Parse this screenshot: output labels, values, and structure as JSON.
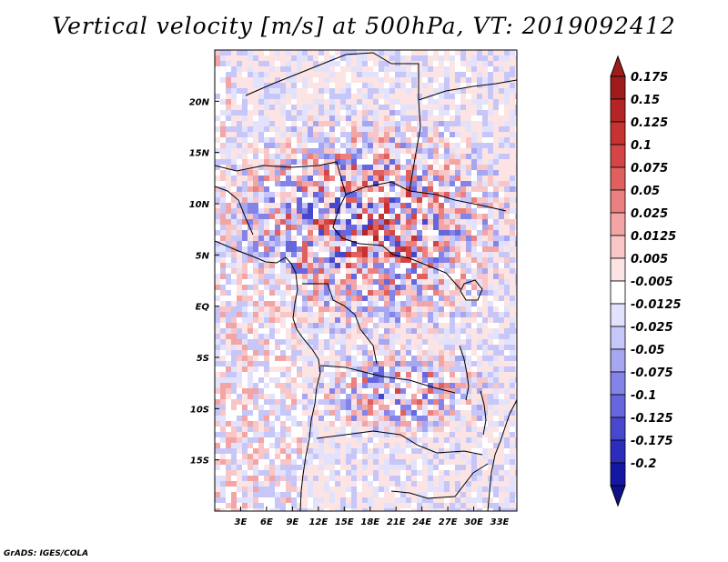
{
  "title": "Vertical velocity [m/s] at 500hPa, VT: 2019092412",
  "credit": "GrADS: IGES/COLA",
  "map": {
    "lon_range": [
      0,
      35
    ],
    "lat_range": [
      -20,
      25
    ],
    "lat_ticks": [
      {
        "value": 20,
        "label": "20N"
      },
      {
        "value": 15,
        "label": "15N"
      },
      {
        "value": 10,
        "label": "10N"
      },
      {
        "value": 5,
        "label": "5N"
      },
      {
        "value": 0,
        "label": "EQ"
      },
      {
        "value": -5,
        "label": "5S"
      },
      {
        "value": -10,
        "label": "10S"
      },
      {
        "value": -15,
        "label": "15S"
      }
    ],
    "lon_ticks": [
      {
        "value": 3,
        "label": "3E"
      },
      {
        "value": 6,
        "label": "6E"
      },
      {
        "value": 9,
        "label": "9E"
      },
      {
        "value": 12,
        "label": "12E"
      },
      {
        "value": 15,
        "label": "15E"
      },
      {
        "value": 18,
        "label": "18E"
      },
      {
        "value": 21,
        "label": "21E"
      },
      {
        "value": 24,
        "label": "24E"
      },
      {
        "value": 27,
        "label": "27E"
      },
      {
        "value": 30,
        "label": "30E"
      },
      {
        "value": 33,
        "label": "33E"
      }
    ]
  },
  "colorbar": {
    "levels": [
      {
        "label": "0.175",
        "color": "#a01c1c"
      },
      {
        "label": "0.15",
        "color": "#b52525"
      },
      {
        "label": "0.125",
        "color": "#c73232"
      },
      {
        "label": "0.1",
        "color": "#d64545"
      },
      {
        "label": "0.075",
        "color": "#e06060"
      },
      {
        "label": "0.05",
        "color": "#ea8080"
      },
      {
        "label": "0.025",
        "color": "#f3a4a4"
      },
      {
        "label": "0.0125",
        "color": "#f8c6c6"
      },
      {
        "label": "0.005",
        "color": "#fce4e4"
      },
      {
        "label": "-0.005",
        "color": "#ffffff"
      },
      {
        "label": "-0.0125",
        "color": "#e2e2fc"
      },
      {
        "label": "-0.025",
        "color": "#c6c6f8"
      },
      {
        "label": "-0.05",
        "color": "#a6a6f1"
      },
      {
        "label": "-0.075",
        "color": "#8484e8"
      },
      {
        "label": "-0.1",
        "color": "#6666dd"
      },
      {
        "label": "-0.125",
        "color": "#4848cf"
      },
      {
        "label": "-0.175",
        "color": "#2c2cbd"
      },
      {
        "label": "-0.2",
        "color": "#1616a4"
      }
    ],
    "lowest_color": "#10108a"
  }
}
